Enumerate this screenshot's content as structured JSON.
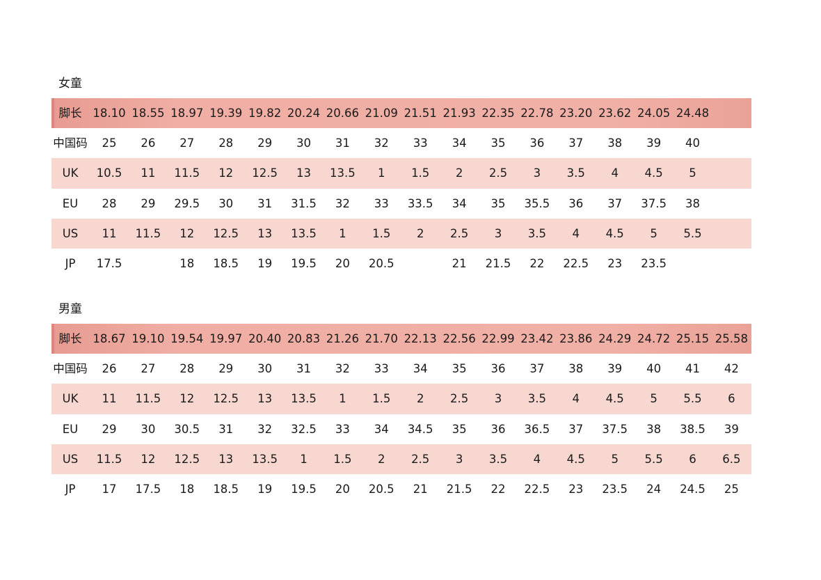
{
  "tables": [
    {
      "title": "女童",
      "rows": [
        {
          "label": "脚长",
          "style": "header",
          "cells": [
            "18.10",
            "18.55",
            "18.97",
            "19.39",
            "19.82",
            "20.24",
            "20.66",
            "21.09",
            "21.51",
            "21.93",
            "22.35",
            "22.78",
            "23.20",
            "23.62",
            "24.05",
            "24.48",
            ""
          ]
        },
        {
          "label": "中国码",
          "style": "plain",
          "cells": [
            "25",
            "26",
            "27",
            "28",
            "29",
            "30",
            "31",
            "32",
            "33",
            "34",
            "35",
            "36",
            "37",
            "38",
            "39",
            "40",
            ""
          ]
        },
        {
          "label": "UK",
          "style": "band",
          "cells": [
            "10.5",
            "11",
            "11.5",
            "12",
            "12.5",
            "13",
            "13.5",
            "1",
            "1.5",
            "2",
            "2.5",
            "3",
            "3.5",
            "4",
            "4.5",
            "5",
            ""
          ]
        },
        {
          "label": "EU",
          "style": "plain",
          "cells": [
            "28",
            "29",
            "29.5",
            "30",
            "31",
            "31.5",
            "32",
            "33",
            "33.5",
            "34",
            "35",
            "35.5",
            "36",
            "37",
            "37.5",
            "38",
            ""
          ]
        },
        {
          "label": "US",
          "style": "band",
          "cells": [
            "11",
            "11.5",
            "12",
            "12.5",
            "13",
            "13.5",
            "1",
            "1.5",
            "2",
            "2.5",
            "3",
            "3.5",
            "4",
            "4.5",
            "5",
            "5.5",
            ""
          ]
        },
        {
          "label": "JP",
          "style": "plain",
          "cells": [
            "17.5",
            "",
            "18",
            "18.5",
            "19",
            "19.5",
            "20",
            "20.5",
            "",
            "21",
            "21.5",
            "22",
            "22.5",
            "23",
            "23.5",
            "",
            ""
          ]
        }
      ]
    },
    {
      "title": "男童",
      "rows": [
        {
          "label": "脚长",
          "style": "header",
          "cells": [
            "18.67",
            "19.10",
            "19.54",
            "19.97",
            "20.40",
            "20.83",
            "21.26",
            "21.70",
            "22.13",
            "22.56",
            "22.99",
            "23.42",
            "23.86",
            "24.29",
            "24.72",
            "25.15",
            "25.58"
          ]
        },
        {
          "label": "中国码",
          "style": "plain",
          "cells": [
            "26",
            "27",
            "28",
            "29",
            "30",
            "31",
            "32",
            "33",
            "34",
            "35",
            "36",
            "37",
            "38",
            "39",
            "40",
            "41",
            "42"
          ]
        },
        {
          "label": "UK",
          "style": "band",
          "cells": [
            "11",
            "11.5",
            "12",
            "12.5",
            "13",
            "13.5",
            "1",
            "1.5",
            "2",
            "2.5",
            "3",
            "3.5",
            "4",
            "4.5",
            "5",
            "5.5",
            "6"
          ]
        },
        {
          "label": "EU",
          "style": "plain",
          "cells": [
            "29",
            "30",
            "30.5",
            "31",
            "32",
            "32.5",
            "33",
            "34",
            "34.5",
            "35",
            "36",
            "36.5",
            "37",
            "37.5",
            "38",
            "38.5",
            "39"
          ]
        },
        {
          "label": "US",
          "style": "band",
          "cells": [
            "11.5",
            "12",
            "12.5",
            "13",
            "13.5",
            "1",
            "1.5",
            "2",
            "2.5",
            "3",
            "3.5",
            "4",
            "4.5",
            "5",
            "5.5",
            "6",
            "6.5"
          ]
        },
        {
          "label": "JP",
          "style": "plain",
          "cells": [
            "17",
            "17.5",
            "18",
            "18.5",
            "19",
            "19.5",
            "20",
            "20.5",
            "21",
            "21.5",
            "22",
            "22.5",
            "23",
            "23.5",
            "24",
            "24.5",
            "25"
          ]
        }
      ]
    }
  ]
}
